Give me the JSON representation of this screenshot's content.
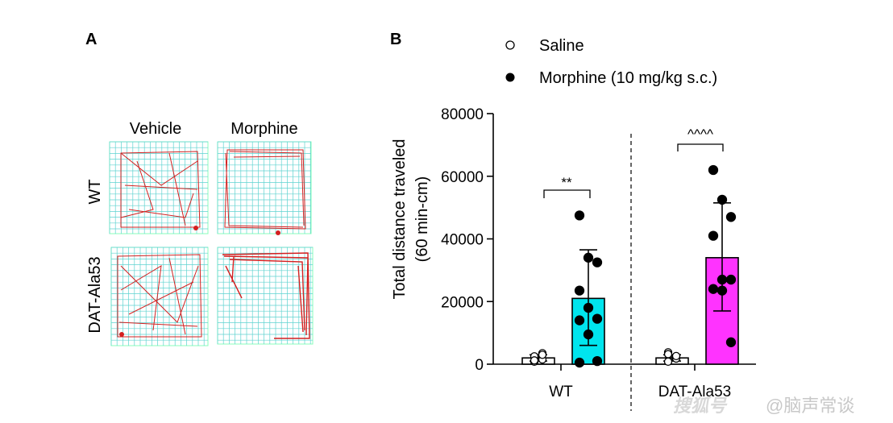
{
  "panel_a": {
    "letter": "A",
    "columns": [
      "Vehicle",
      "Morphine"
    ],
    "rows": [
      "WT",
      "DAT-Ala53"
    ],
    "grid_color": "#5fd3d0",
    "trace_color": "#d42020"
  },
  "watermark": {
    "text": "@脑声常谈",
    "logo_text": "搜狐号"
  },
  "chart_data": {
    "panel_letter": "B",
    "type": "bar",
    "ylabel_line1": "Total distance traveled",
    "ylabel_line2": "(60 min-cm)",
    "ylim": [
      0,
      80000
    ],
    "yticks": [
      0,
      20000,
      40000,
      60000,
      80000
    ],
    "ytick_labels": [
      "0",
      "20000",
      "40000",
      "60000",
      "80000"
    ],
    "groups": [
      "WT",
      "DAT-Ala53"
    ],
    "legend": [
      {
        "label": "Saline",
        "marker": "open-circle"
      },
      {
        "label": "Morphine (10 mg/kg s.c.)",
        "marker": "filled-circle"
      }
    ],
    "bars": [
      {
        "group": "WT",
        "treatment": "Saline",
        "mean": 2000,
        "sd_low": 1000,
        "sd_high": 3000,
        "color": "#ffffff",
        "points": [
          800,
          1500,
          2500,
          3500,
          1200,
          3000
        ]
      },
      {
        "group": "WT",
        "treatment": "Morphine",
        "mean": 21000,
        "sd_low": 6000,
        "sd_high": 36500,
        "color": "#00e5ee",
        "points": [
          47500,
          34000,
          32500,
          23500,
          18000,
          14500,
          14000,
          9500,
          1000,
          500
        ]
      },
      {
        "group": "DAT-Ala53",
        "treatment": "Saline",
        "mean": 2000,
        "sd_low": 1000,
        "sd_high": 3000,
        "color": "#ffffff",
        "points": [
          800,
          1800,
          3800,
          2600,
          3200
        ]
      },
      {
        "group": "DAT-Ala53",
        "treatment": "Morphine",
        "mean": 34000,
        "sd_low": 17000,
        "sd_high": 51500,
        "color": "#ff33ff",
        "points": [
          62000,
          52500,
          47000,
          41000,
          27000,
          27000,
          24000,
          23500,
          7000
        ]
      }
    ],
    "annotations": [
      {
        "text": "**",
        "group": "WT"
      },
      {
        "text": "^^^^",
        "group": "DAT-Ala53"
      }
    ]
  }
}
